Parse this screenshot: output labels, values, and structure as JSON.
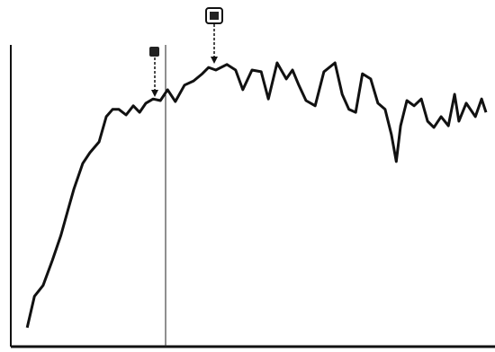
{
  "chart_data": {
    "type": "line",
    "x": [
      3.4,
      4.9,
      6.7,
      8.6,
      10.4,
      11.8,
      13.1,
      14.9,
      16.4,
      18.3,
      19.8,
      21.1,
      22.4,
      23.9,
      25.4,
      26.7,
      28,
      29.5,
      31,
      32.5,
      34.1,
      36,
      37.9,
      39.7,
      41,
      42.5,
      44.8,
      46.6,
      48.1,
      50,
      51.9,
      53.4,
      55.2,
      57.1,
      58.4,
      59.7,
      61.2,
      63.1,
      64.9,
      67.2,
      68.7,
      70.1,
      71.5,
      72.9,
      74.6,
      76.1,
      77.6,
      78.9,
      79.9,
      80.8,
      82.1,
      83.6,
      85.1,
      86.4,
      87.7,
      89.2,
      90.7,
      92,
      92.9,
      94.4,
      96.3,
      97.6,
      98.5
    ],
    "series": [
      {
        "color": "#111111",
        "values": [
          5.5,
          15.1,
          18.4,
          26,
          33.7,
          41.1,
          47.9,
          55.6,
          58.9,
          62.2,
          69.9,
          72.1,
          72.1,
          70.4,
          73.2,
          71.2,
          74,
          75.3,
          74.8,
          78.1,
          74.5,
          79.5,
          80.8,
          83,
          84.9,
          84.1,
          85.8,
          84.1,
          78.1,
          84.1,
          83.6,
          75.3,
          86.3,
          81.4,
          84.1,
          79.5,
          74.8,
          73.2,
          83.6,
          86.3,
          76.7,
          72.1,
          71.2,
          83,
          81.4,
          74,
          72.1,
          64.4,
          56.2,
          67.1,
          74.8,
          73.2,
          75.3,
          68.5,
          66.6,
          69.9,
          67.1,
          76.7,
          68.5,
          74,
          69.9,
          75.3,
          71.2
        ]
      }
    ],
    "xlim": [
      0,
      100
    ],
    "ylim": [
      0,
      100
    ]
  }
}
